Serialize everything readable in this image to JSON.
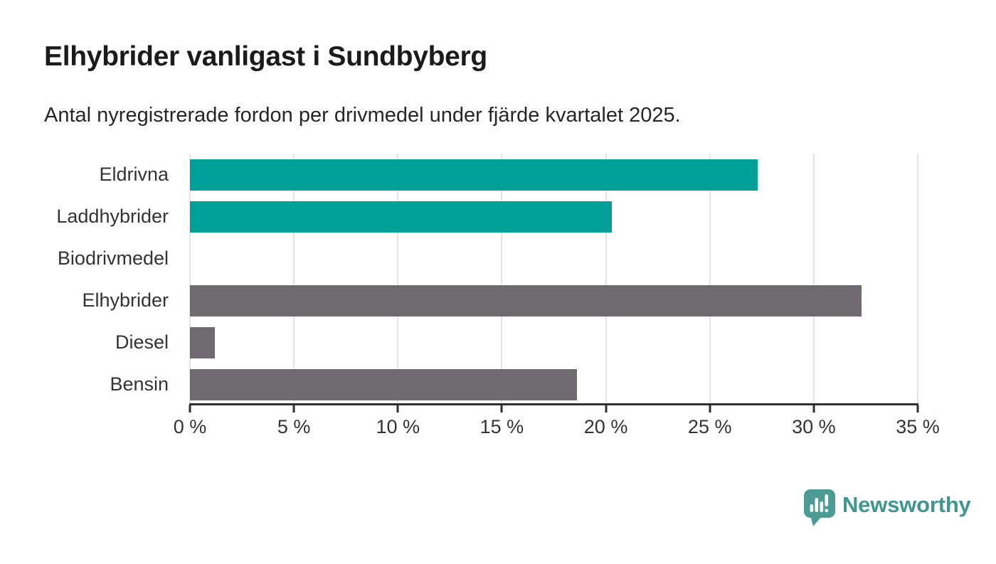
{
  "header": {
    "title": "Elhybrider vanligast i Sundbyberg",
    "subtitle": "Antal nyregistrerade fordon per drivmedel under fjärde kvartalet 2025."
  },
  "chart_data": {
    "type": "bar",
    "orientation": "horizontal",
    "title": "Elhybrider vanligast i Sundbyberg",
    "subtitle": "Antal nyregistrerade fordon per drivmedel under fjärde kvartalet 2025.",
    "categories": [
      "Eldrivna",
      "Laddhybrider",
      "Biodrivmedel",
      "Elhybrider",
      "Diesel",
      "Bensin"
    ],
    "values": [
      27.3,
      20.3,
      0,
      32.3,
      1.2,
      18.6
    ],
    "unit": "%",
    "bar_colors": [
      "#00a098",
      "#00a098",
      "#00a098",
      "#6e6a70",
      "#6e6a70",
      "#6e6a70"
    ],
    "xlabel": "",
    "ylabel": "",
    "xlim": [
      0,
      35
    ],
    "x_ticks": [
      0,
      5,
      10,
      15,
      20,
      25,
      30,
      35
    ],
    "x_tick_labels": [
      "0 %",
      "5 %",
      "10 %",
      "15 %",
      "20 %",
      "25 %",
      "30 %",
      "35 %"
    ],
    "grid": "vertical-only",
    "legend": "none"
  },
  "colors": {
    "teal_bar": "#00a098",
    "gray_bar": "#6e6a70",
    "gridline": "#e4e4e4",
    "axis": "#2f2f2f",
    "label_text": "#333333",
    "title_text": "#1b1b1b",
    "brand_teal": "#3e978f"
  },
  "footer": {
    "brand": "Newsworthy"
  }
}
